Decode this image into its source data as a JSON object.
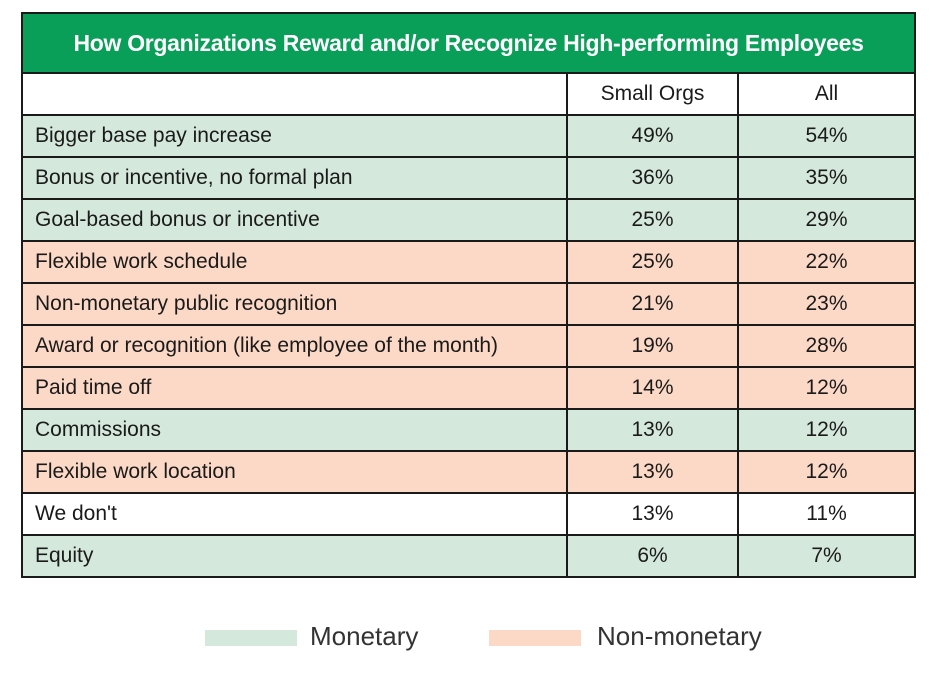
{
  "chart_data": {
    "type": "table",
    "title": "How Organizations Reward and/or Recognize High-performing Employees",
    "columns": [
      "",
      "Small Orgs",
      "All"
    ],
    "rows": [
      {
        "label": "Bigger base pay increase",
        "small_orgs": "49%",
        "all": "54%",
        "category": "monetary"
      },
      {
        "label": "Bonus or incentive, no formal plan",
        "small_orgs": "36%",
        "all": "35%",
        "category": "monetary"
      },
      {
        "label": "Goal-based bonus or incentive",
        "small_orgs": "25%",
        "all": "29%",
        "category": "monetary"
      },
      {
        "label": "Flexible work schedule",
        "small_orgs": "25%",
        "all": "22%",
        "category": "nonmonetary"
      },
      {
        "label": "Non-monetary public recognition",
        "small_orgs": "21%",
        "all": "23%",
        "category": "nonmonetary"
      },
      {
        "label": "Award or recognition (like employee of the month)",
        "small_orgs": "19%",
        "all": "28%",
        "category": "nonmonetary"
      },
      {
        "label": "Paid time off",
        "small_orgs": "14%",
        "all": "12%",
        "category": "nonmonetary"
      },
      {
        "label": "Commissions",
        "small_orgs": "13%",
        "all": "12%",
        "category": "monetary"
      },
      {
        "label": "Flexible work location",
        "small_orgs": "13%",
        "all": "12%",
        "category": "nonmonetary"
      },
      {
        "label": "We don't",
        "small_orgs": "13%",
        "all": "11%",
        "category": "none"
      },
      {
        "label": "Equity",
        "small_orgs": "6%",
        "all": "7%",
        "category": "monetary"
      }
    ]
  },
  "legend": {
    "monetary_label": "Monetary",
    "nonmonetary_label": "Non-monetary"
  },
  "colors": {
    "header_green": "#0a9f59",
    "monetary": "#d4e8dc",
    "nonmonetary": "#fcd9c6"
  }
}
